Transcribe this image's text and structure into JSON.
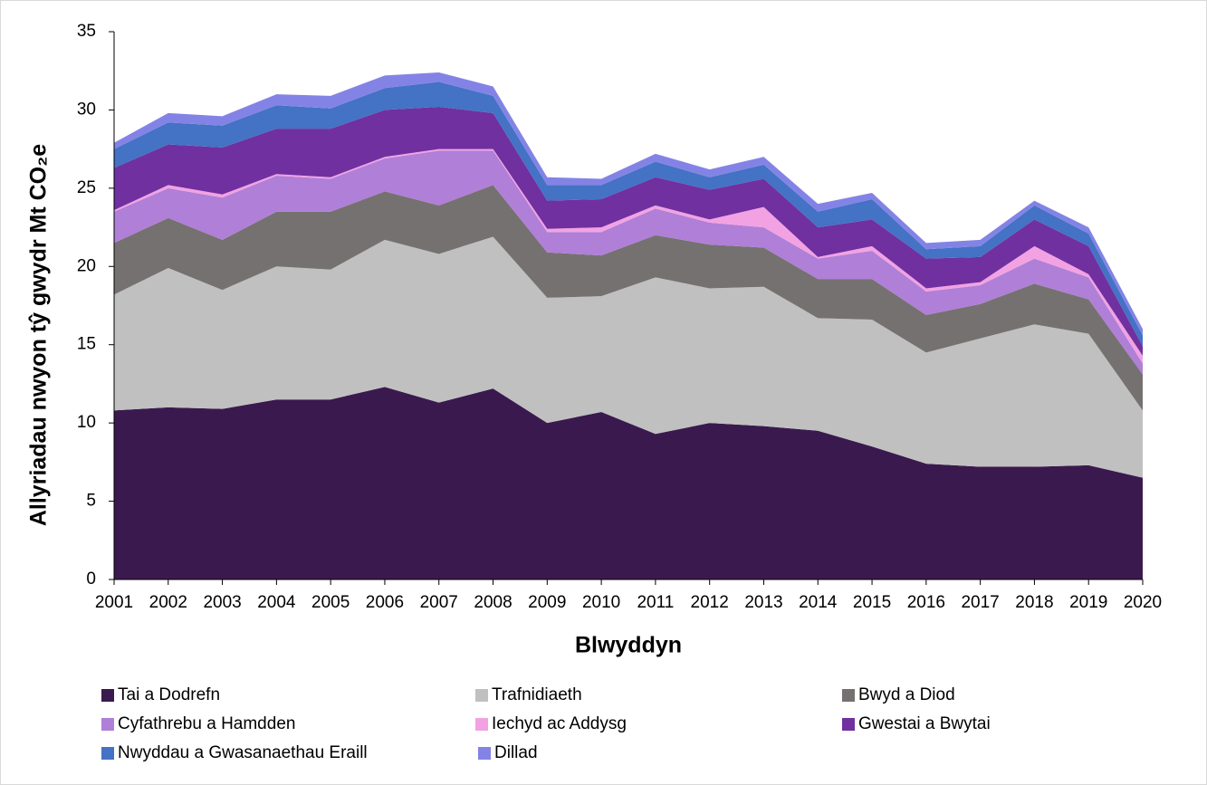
{
  "chart_data": {
    "type": "stacked_area",
    "y_label": "Allyriadau nwyon tŷ gwydr Mt CO₂e",
    "x_label": "Blwyddyn",
    "categories": [
      "2001",
      "2002",
      "2003",
      "2004",
      "2005",
      "2006",
      "2007",
      "2008",
      "2009",
      "2010",
      "2011",
      "2012",
      "2013",
      "2014",
      "2015",
      "2016",
      "2017",
      "2018",
      "2019",
      "2020"
    ],
    "ylim": [
      0,
      35
    ],
    "yticks": [
      0,
      5,
      10,
      15,
      20,
      25,
      30,
      35
    ],
    "series": [
      {
        "name": "Tai a Dodrefn",
        "color": "#3a1a4e",
        "values": [
          10.8,
          11.0,
          10.9,
          11.5,
          11.5,
          12.3,
          11.3,
          12.2,
          10.0,
          10.7,
          9.3,
          10.0,
          9.8,
          9.5,
          8.5,
          7.4,
          7.2,
          7.2,
          7.3,
          6.5
        ]
      },
      {
        "name": "Trafnidiaeth",
        "color": "#c0c0c0",
        "values": [
          7.4,
          8.9,
          7.6,
          8.5,
          8.3,
          9.4,
          9.5,
          9.7,
          8.0,
          7.4,
          10.0,
          8.6,
          8.9,
          7.2,
          8.1,
          7.1,
          8.2,
          9.1,
          8.4,
          4.3
        ]
      },
      {
        "name": "Bwyd a Diod",
        "color": "#767171",
        "values": [
          3.3,
          3.2,
          3.2,
          3.5,
          3.7,
          3.1,
          3.1,
          3.3,
          2.9,
          2.6,
          2.7,
          2.8,
          2.5,
          2.5,
          2.6,
          2.4,
          2.2,
          2.6,
          2.2,
          2.3
        ]
      },
      {
        "name": "Cyfathrebu a Hamdden",
        "color": "#b07fd8",
        "values": [
          2.0,
          1.9,
          2.7,
          2.3,
          2.1,
          2.1,
          3.5,
          2.2,
          1.3,
          1.5,
          1.7,
          1.4,
          1.3,
          1.3,
          1.8,
          1.5,
          1.2,
          1.6,
          1.4,
          0.7
        ]
      },
      {
        "name": "Iechyd ac Addysg",
        "color": "#f2a2e2",
        "values": [
          0.1,
          0.2,
          0.2,
          0.1,
          0.1,
          0.1,
          0.1,
          0.1,
          0.2,
          0.3,
          0.2,
          0.2,
          1.3,
          0.1,
          0.3,
          0.2,
          0.2,
          0.8,
          0.2,
          0.5
        ]
      },
      {
        "name": "Gwestai a Bwytai",
        "color": "#7030a0",
        "values": [
          2.7,
          2.6,
          3.0,
          2.9,
          3.1,
          3.0,
          2.7,
          2.3,
          1.8,
          1.8,
          1.8,
          1.9,
          1.8,
          1.9,
          1.7,
          1.9,
          1.6,
          1.7,
          1.8,
          0.6
        ]
      },
      {
        "name": "Nwyddau a Gwasanaethau Eraill",
        "color": "#4472c4",
        "values": [
          1.2,
          1.4,
          1.4,
          1.5,
          1.3,
          1.4,
          1.6,
          1.1,
          1.0,
          0.9,
          1.0,
          0.8,
          0.9,
          1.0,
          1.3,
          0.6,
          0.7,
          0.9,
          0.8,
          0.7
        ]
      },
      {
        "name": "Dillad",
        "color": "#8383e6",
        "values": [
          0.4,
          0.6,
          0.6,
          0.7,
          0.8,
          0.8,
          0.6,
          0.6,
          0.5,
          0.4,
          0.5,
          0.5,
          0.5,
          0.5,
          0.4,
          0.4,
          0.4,
          0.3,
          0.4,
          0.4
        ]
      }
    ]
  }
}
